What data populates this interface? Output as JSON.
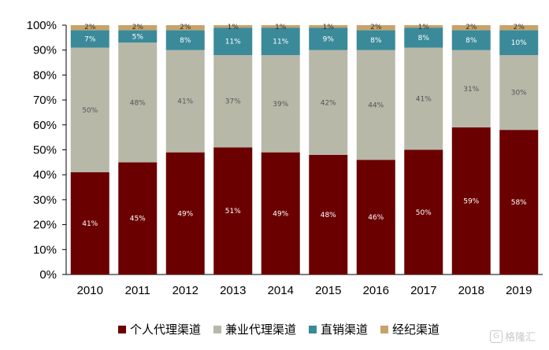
{
  "chart_data": {
    "type": "bar",
    "stacked": true,
    "categories": [
      "2010",
      "2011",
      "2012",
      "2013",
      "2014",
      "2015",
      "2016",
      "2017",
      "2018",
      "2019"
    ],
    "series": [
      {
        "name": "个人代理渠道",
        "color": "#6b0000",
        "label_color": "#ffffff",
        "values": [
          41,
          45,
          49,
          51,
          49,
          48,
          46,
          50,
          59,
          58
        ]
      },
      {
        "name": "兼业代理渠道",
        "color": "#b8b8a8",
        "label_color": "#555555",
        "values": [
          50,
          48,
          41,
          37,
          39,
          42,
          44,
          41,
          31,
          30
        ]
      },
      {
        "name": "直销渠道",
        "color": "#3a8a9a",
        "label_color": "#ffffff",
        "values": [
          7,
          5,
          8,
          11,
          11,
          9,
          8,
          8,
          8,
          10
        ]
      },
      {
        "name": "经纪渠道",
        "color": "#c8a26a",
        "label_color": "#333333",
        "values": [
          2,
          2,
          2,
          1,
          1,
          1,
          2,
          1,
          2,
          2
        ]
      }
    ],
    "ylim": [
      0,
      100
    ],
    "yticks": [
      "0%",
      "10%",
      "20%",
      "30%",
      "40%",
      "50%",
      "60%",
      "70%",
      "80%",
      "90%",
      "100%"
    ],
    "grid": false,
    "legend_position": "bottom"
  },
  "watermark": {
    "text": "格隆汇",
    "icon": "G"
  }
}
